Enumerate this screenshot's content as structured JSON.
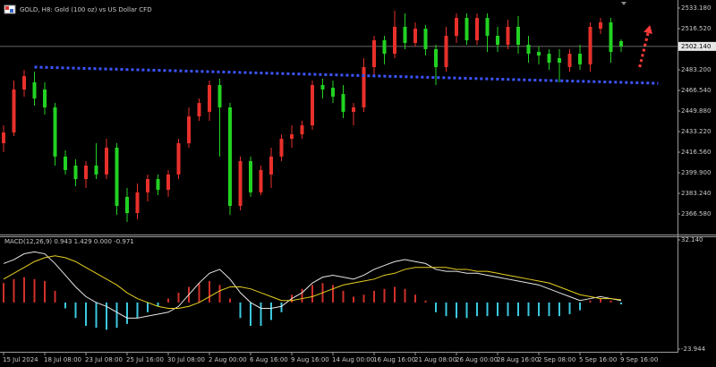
{
  "chart_data": [
    {
      "type": "candlestick",
      "title": "GOLD, H8:  Gold (100 oz) vs US Dollar CFD",
      "categories": [
        "15 Jul 2024",
        null,
        null,
        null,
        "18 Jul 08:00",
        null,
        null,
        null,
        "23 Jul 08:00",
        null,
        null,
        null,
        "25 Jul 16:00",
        null,
        null,
        null,
        "30 Jul 08:00",
        null,
        null,
        null,
        "2 Aug 00:00",
        null,
        null,
        null,
        "6 Aug 16:00",
        null,
        null,
        null,
        "9 Aug 16:00",
        null,
        null,
        null,
        "14 Aug 00:00",
        null,
        null,
        null,
        "16 Aug 16:00",
        null,
        null,
        null,
        "21 Aug 08:00",
        null,
        null,
        null,
        "26 Aug 00:00",
        null,
        null,
        null,
        "28 Aug 16:00",
        null,
        null,
        null,
        "2 Sep 08:00",
        null,
        null,
        null,
        "5 Sep 16:00",
        null,
        null,
        null,
        "9 Sep 16:00"
      ],
      "open": [
        2423.8,
        2432.5,
        2467.3,
        2473.1,
        2467.3,
        2452.8,
        2413.0,
        2405.7,
        2394.8,
        2405.7,
        2398.5,
        2420.2,
        2380.4,
        2367.3,
        2384.0,
        2394.8,
        2386.1,
        2398.5,
        2423.8,
        2445.5,
        2449.2,
        2470.9,
        2452.8,
        2373.1,
        2409.3,
        2384.0,
        2398.5,
        2413.0,
        2427.4,
        2431.0,
        2438.3,
        2470.9,
        2468.7,
        2463.6,
        2449.2,
        2452.8,
        2485.4,
        2507.1,
        2496.2,
        2518.0,
        2504.9,
        2516.5,
        2499.9,
        2485.4,
        2510.7,
        2525.2,
        2507.1,
        2525.2,
        2510.7,
        2503.5,
        2518.0,
        2503.5,
        2497.7,
        2496.2,
        2492.6,
        2485.4,
        2496.2,
        2487.6,
        2516.5,
        2521.6,
        2506.4
      ],
      "high": [
        2438.3,
        2474.5,
        2483.2,
        2481.8,
        2473.1,
        2456.4,
        2418.0,
        2410.8,
        2409.3,
        2423.8,
        2427.4,
        2423.8,
        2387.6,
        2391.2,
        2398.5,
        2398.5,
        2402.1,
        2427.4,
        2452.8,
        2460.0,
        2474.5,
        2476.0,
        2456.4,
        2413.0,
        2413.0,
        2405.7,
        2420.2,
        2431.0,
        2438.3,
        2441.9,
        2474.5,
        2476.0,
        2474.5,
        2470.9,
        2456.4,
        2492.6,
        2510.7,
        2510.7,
        2531.0,
        2528.8,
        2521.6,
        2519.4,
        2503.5,
        2518.0,
        2528.8,
        2528.8,
        2528.8,
        2528.8,
        2518.0,
        2523.8,
        2526.7,
        2510.7,
        2502.0,
        2499.9,
        2499.9,
        2499.9,
        2503.5,
        2521.6,
        2525.2,
        2525.2,
        2507.8
      ],
      "low": [
        2416.6,
        2429.6,
        2461.5,
        2454.2,
        2447.0,
        2405.7,
        2398.5,
        2389.0,
        2387.6,
        2394.8,
        2394.8,
        2365.9,
        2360.1,
        2362.2,
        2376.7,
        2381.8,
        2380.4,
        2394.8,
        2420.2,
        2441.9,
        2441.9,
        2413.0,
        2365.9,
        2369.5,
        2380.4,
        2381.8,
        2387.6,
        2409.3,
        2420.2,
        2427.4,
        2434.7,
        2460.0,
        2456.4,
        2444.1,
        2438.3,
        2449.2,
        2478.1,
        2487.6,
        2492.6,
        2499.9,
        2502.0,
        2494.8,
        2470.9,
        2481.8,
        2504.9,
        2503.5,
        2503.5,
        2497.7,
        2497.7,
        2499.9,
        2496.2,
        2489.0,
        2487.6,
        2483.2,
        2473.1,
        2481.8,
        2483.2,
        2481.8,
        2512.2,
        2489.0,
        2497.7
      ],
      "close": [
        2432.5,
        2467.3,
        2478.1,
        2460.0,
        2452.8,
        2413.0,
        2402.1,
        2394.8,
        2405.7,
        2398.5,
        2420.2,
        2373.1,
        2367.3,
        2384.0,
        2394.8,
        2386.1,
        2398.5,
        2423.8,
        2445.5,
        2456.4,
        2470.9,
        2452.8,
        2373.1,
        2409.3,
        2384.0,
        2402.1,
        2413.0,
        2427.4,
        2431.0,
        2438.3,
        2470.9,
        2467.3,
        2461.5,
        2449.2,
        2452.8,
        2485.4,
        2507.1,
        2496.2,
        2518.0,
        2504.9,
        2516.5,
        2499.9,
        2485.4,
        2510.7,
        2525.2,
        2507.1,
        2525.2,
        2510.7,
        2503.5,
        2518.0,
        2503.5,
        2496.2,
        2494.8,
        2489.0,
        2489.0,
        2496.2,
        2487.6,
        2518.0,
        2521.6,
        2497.7,
        2502.14
      ],
      "up_color": "#e8302b",
      "down_color": "#22d222",
      "ylim": [
        2349.93,
        2539.7
      ],
      "yticks": [
        {
          "value": 2533.18,
          "label": "2533.180"
        },
        {
          "value": 2516.52,
          "label": "2516.520"
        },
        {
          "value": 2483.2,
          "label": "2483.200"
        },
        {
          "value": 2466.54,
          "label": "2466.540"
        },
        {
          "value": 2449.88,
          "label": "2449.880"
        },
        {
          "value": 2433.22,
          "label": "2433.220"
        },
        {
          "value": 2416.56,
          "label": "2416.560"
        },
        {
          "value": 2399.9,
          "label": "2399.900"
        },
        {
          "value": 2383.24,
          "label": "2383.240"
        },
        {
          "value": 2366.58,
          "label": "2366.580"
        }
      ],
      "last_price": {
        "value": 2502.14,
        "label": "2502.140"
      },
      "trendline": {
        "color": "#3d55ff",
        "x": [
          3,
          63.6
        ],
        "values": [
          2485.4,
          2472.3
        ]
      },
      "arrow": {
        "color": "#ff3a3a",
        "x": [
          61.8,
          62.8
        ],
        "values": [
          2485.4,
          2519.4
        ]
      }
    },
    {
      "type": "macd",
      "title": "MACD(12,26,9) 0.943 1.429 0.000 -0.971",
      "histogram": [
        10,
        12,
        13,
        12,
        11,
        6,
        -3,
        -8,
        -12,
        -13,
        -14,
        -13,
        -11,
        -8,
        -5,
        -2,
        2,
        5,
        8,
        10,
        11,
        9,
        2,
        -8,
        -12,
        -12,
        -9,
        -5,
        4,
        7,
        9,
        10,
        9,
        6,
        3,
        4,
        6,
        7,
        8,
        7,
        4,
        1,
        -5,
        -7,
        -8,
        -8,
        -7,
        -7,
        -7,
        -7,
        -7,
        -7,
        -7,
        -7,
        -7,
        -6,
        -4,
        1,
        2,
        1,
        -0.971
      ],
      "positive_color": "#d0302a",
      "negative_color": "#3cc8e0",
      "series": [
        {
          "color": "#e6e6e6",
          "values": [
            20,
            22,
            25,
            26,
            25,
            20,
            14,
            8,
            3,
            0,
            -2,
            -5,
            -8,
            -8,
            -7,
            -6,
            -5,
            -2,
            4,
            10,
            15,
            17,
            12,
            5,
            0,
            -3,
            -3,
            -2,
            2,
            5,
            10,
            13,
            14,
            13,
            12,
            14,
            17,
            19,
            21,
            22,
            21,
            20,
            17,
            16,
            16,
            15,
            15,
            14,
            13,
            12,
            11,
            10,
            9,
            7,
            5,
            3,
            1,
            2,
            3,
            2,
            0.943
          ]
        },
        {
          "color": "#e8d020",
          "values": [
            12,
            15,
            18,
            21,
            23,
            24,
            23,
            21,
            18,
            15,
            12,
            9,
            5,
            2,
            0,
            -2,
            -3,
            -3,
            -2,
            0,
            3,
            6,
            8,
            8,
            7,
            5,
            3,
            1,
            1,
            2,
            3,
            5,
            7,
            9,
            10,
            11,
            12,
            14,
            15,
            17,
            18,
            18,
            18,
            18,
            17,
            17,
            16,
            16,
            15,
            14,
            13,
            12,
            11,
            10,
            8,
            6,
            4,
            3,
            2,
            2,
            1.429
          ]
        }
      ],
      "ylim": [
        -24.86,
        33.98
      ],
      "yticks": [
        {
          "value": 32.14,
          "label": "32.140"
        },
        {
          "value": -23.944,
          "label": "-23.944"
        }
      ]
    }
  ]
}
